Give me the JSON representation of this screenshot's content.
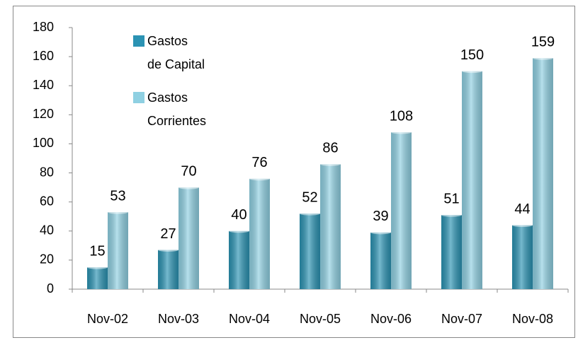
{
  "chart_data": {
    "type": "bar",
    "categories": [
      "Nov-02",
      "Nov-03",
      "Nov-04",
      "Nov-05",
      "Nov-06",
      "Nov-07",
      "Nov-08"
    ],
    "series": [
      {
        "name": "Gastos\nde Capital",
        "color": "#2b93b3",
        "values": [
          15,
          27,
          40,
          52,
          39,
          51,
          44
        ]
      },
      {
        "name": "Gastos\nCorrientes",
        "color": "#8fd0e2",
        "values": [
          53,
          70,
          76,
          86,
          108,
          150,
          159
        ]
      }
    ],
    "ylim": [
      0,
      180
    ],
    "yticks": [
      0,
      20,
      40,
      60,
      80,
      100,
      120,
      140,
      160,
      180
    ],
    "grid": false,
    "legend": "top-left"
  }
}
